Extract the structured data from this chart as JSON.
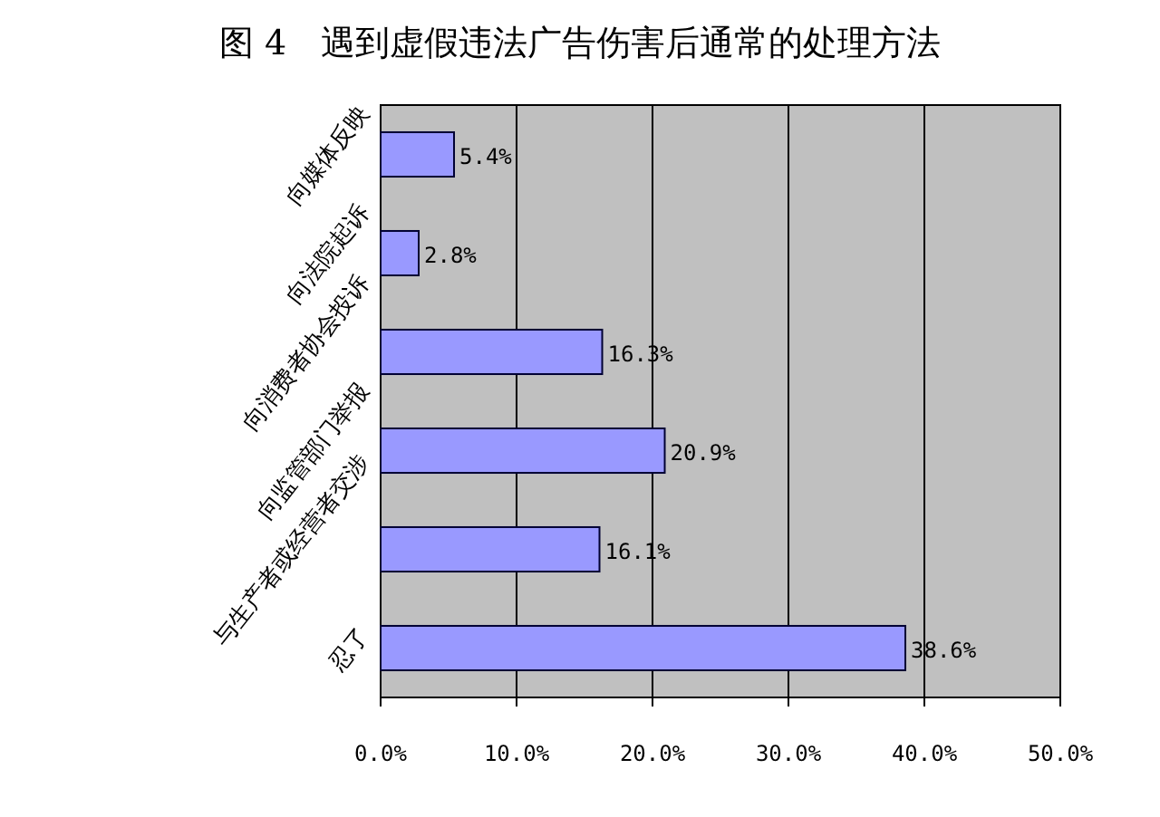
{
  "chart_data": {
    "type": "bar",
    "orientation": "horizontal",
    "title": "图 4　遇到虚假违法广告伤害后通常的处理方法",
    "categories": [
      "向媒体反映",
      "向法院起诉",
      "向消费者协会投诉",
      "向监管部门举报",
      "与生产者或经营者交涉",
      "忍了"
    ],
    "values": [
      5.4,
      2.8,
      16.3,
      20.9,
      16.1,
      38.6
    ],
    "value_labels": [
      "5.4%",
      "2.8%",
      "16.3%",
      "20.9%",
      "16.1%",
      "38.6%"
    ],
    "color": "#9999ff",
    "xlim": [
      0,
      50
    ],
    "xticks": [
      {
        "value": 0,
        "label": "0.0%"
      },
      {
        "value": 10,
        "label": "10.0%"
      },
      {
        "value": 20,
        "label": "20.0%"
      },
      {
        "value": 30,
        "label": "30.0%"
      },
      {
        "value": 40,
        "label": "40.0%"
      },
      {
        "value": 50,
        "label": "50.0%"
      }
    ],
    "grid": "x"
  }
}
